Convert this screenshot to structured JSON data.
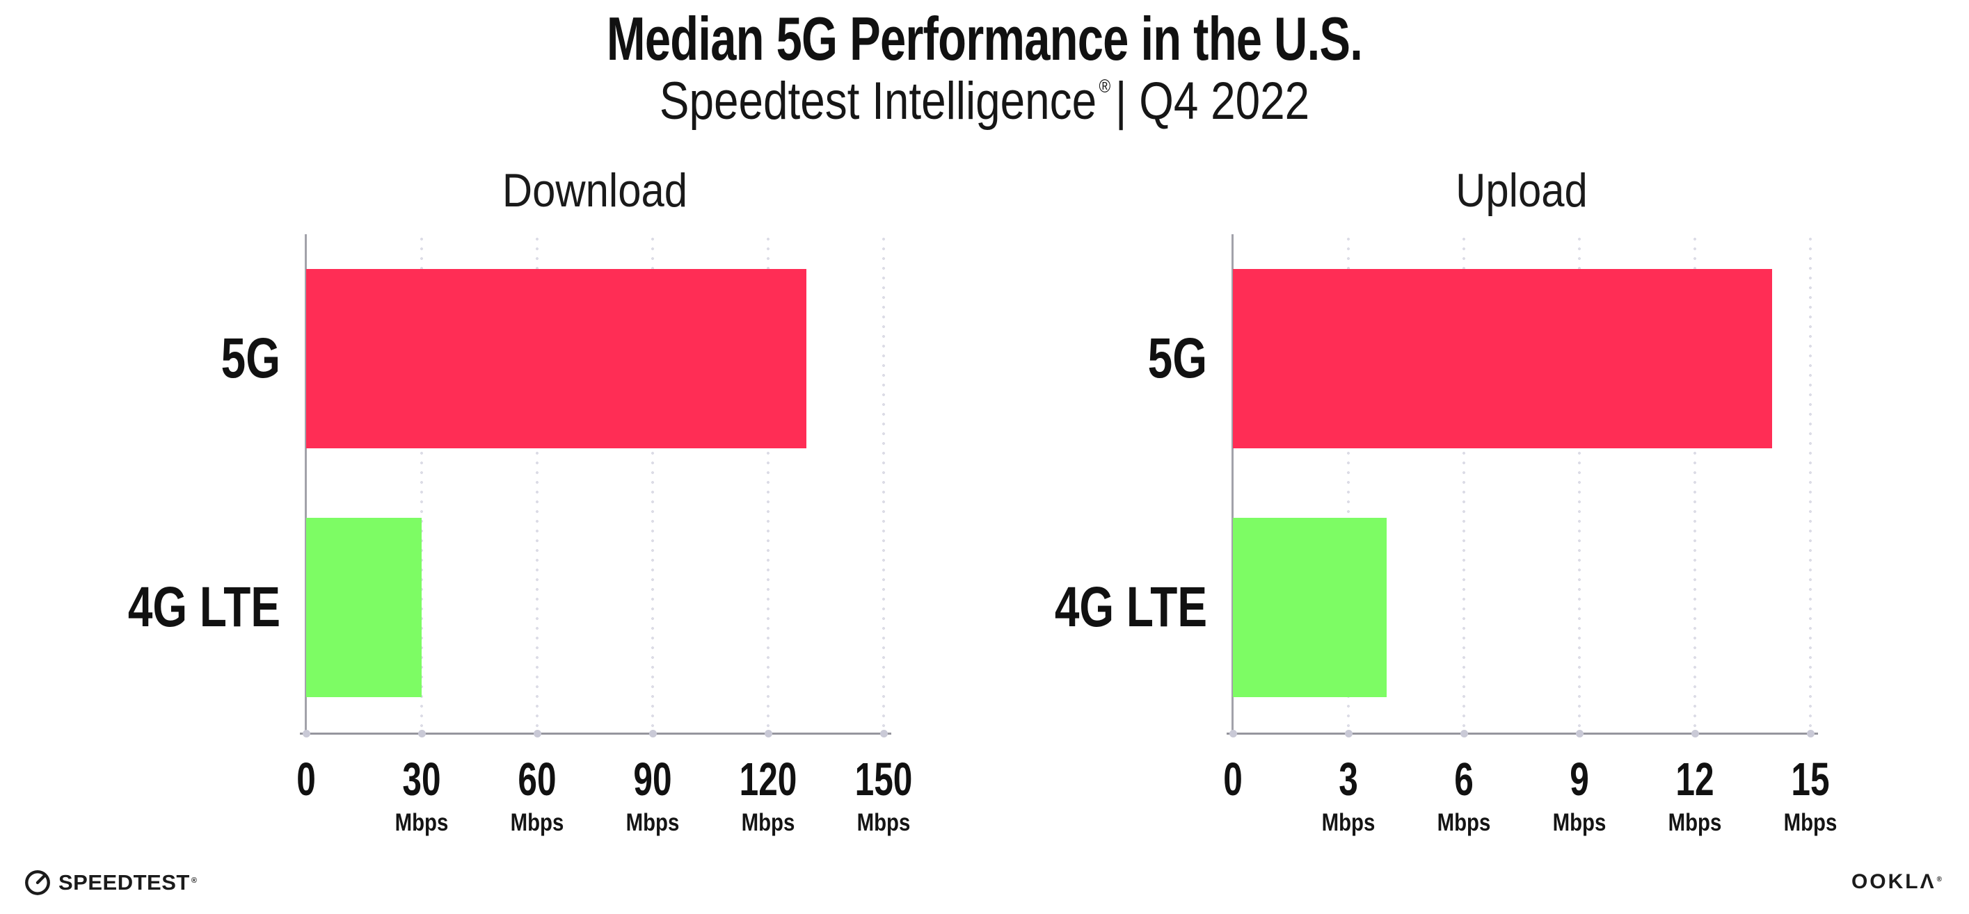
{
  "header": {
    "title": "Median 5G Performance in the U.S.",
    "subtitle": {
      "brand": "Speedtest Intelligence",
      "reg": "®",
      "rest": "| Q4 2022"
    }
  },
  "colors": {
    "bar_5g": "#ff2d55",
    "bar_4g_lte": "#7dfc64",
    "gridline": "#dcdce6",
    "axis": "#96969e",
    "text": "#111111"
  },
  "chart_data": [
    {
      "type": "bar",
      "orientation": "horizontal",
      "title": "Download",
      "categories": [
        "5G",
        "4G LTE"
      ],
      "values": [
        130,
        30
      ],
      "unit": "Mbps",
      "xlim": [
        0,
        150
      ],
      "xticks": [
        0,
        30,
        60,
        90,
        120,
        150
      ],
      "tick_unit_label": "Mbps",
      "series_colors": [
        "#ff2d55",
        "#7dfc64"
      ],
      "grid": "vertical-dotted",
      "legend": "none"
    },
    {
      "type": "bar",
      "orientation": "horizontal",
      "title": "Upload",
      "categories": [
        "5G",
        "4G LTE"
      ],
      "values": [
        14,
        4
      ],
      "unit": "Mbps",
      "xlim": [
        0,
        15
      ],
      "xticks": [
        0,
        3,
        6,
        9,
        12,
        15
      ],
      "tick_unit_label": "Mbps",
      "series_colors": [
        "#ff2d55",
        "#7dfc64"
      ],
      "grid": "vertical-dotted",
      "legend": "none"
    }
  ],
  "footer": {
    "speedtest_text": "SPEEDTEST",
    "speedtest_reg": "®",
    "ookla_text": "OOKLΛ",
    "ookla_reg": "®"
  }
}
